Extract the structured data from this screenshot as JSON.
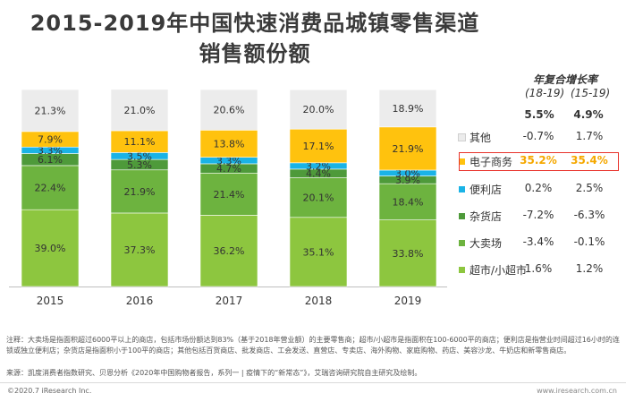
{
  "title_line1": "2015-2019年中国快速消费品城镇零售渠道",
  "title_line2": "销售额份额",
  "cagr_header": "年复合增长率",
  "cagr_period1": "(18-19)",
  "cagr_period2": "(15-19)",
  "chart_data": {
    "type": "bar",
    "stacked": true,
    "percent_stacked": true,
    "categories": [
      "2015",
      "2016",
      "2017",
      "2018",
      "2019"
    ],
    "series": [
      {
        "name": "超市/小超市",
        "color": "#8dc63f",
        "values": [
          39.0,
          37.3,
          36.2,
          35.1,
          33.8
        ],
        "labels": [
          "39.0%",
          "37.3%",
          "36.2%",
          "35.1%",
          "33.8%"
        ]
      },
      {
        "name": "大卖场",
        "color": "#6db33f",
        "values": [
          22.4,
          21.9,
          21.4,
          20.1,
          18.4
        ],
        "labels": [
          "22.4%",
          "21.9%",
          "21.4%",
          "20.1%",
          "18.4%"
        ]
      },
      {
        "name": "杂货店",
        "color": "#4e9a3a",
        "values": [
          6.1,
          5.3,
          4.7,
          4.4,
          3.9
        ],
        "labels": [
          "6.1%",
          "5.3%",
          "4.7%",
          "4.4%",
          "3.9%"
        ]
      },
      {
        "name": "便利店",
        "color": "#1ab3e6",
        "values": [
          3.3,
          3.5,
          3.3,
          3.2,
          3.0
        ],
        "labels": [
          "3.3%",
          "3.5%",
          "3.3%",
          "3.2%",
          "3.0%"
        ]
      },
      {
        "name": "电子商务",
        "color": "#ffc20e",
        "values": [
          7.9,
          11.1,
          13.8,
          17.1,
          21.9
        ],
        "labels": [
          "7.9%",
          "11.1%",
          "13.8%",
          "17.1%",
          "21.9%"
        ]
      },
      {
        "name": "其他",
        "color": "#ececec",
        "values": [
          21.3,
          21.0,
          20.6,
          20.0,
          18.9
        ],
        "labels": [
          "21.3%",
          "21.0%",
          "20.6%",
          "20.0%",
          "18.9%"
        ]
      }
    ],
    "ylim": [
      0,
      100
    ]
  },
  "legend_rows": [
    {
      "name": "其他",
      "color": "#ececec",
      "cagr_18_19": "-0.7%",
      "cagr_15_19": "1.7%",
      "highlight": false
    },
    {
      "name": "电子商务",
      "color": "#ffc20e",
      "cagr_18_19": "35.2%",
      "cagr_15_19": "35.4%",
      "highlight": true
    },
    {
      "name": "便利店",
      "color": "#1ab3e6",
      "cagr_18_19": "0.2%",
      "cagr_15_19": "2.5%",
      "highlight": false
    },
    {
      "name": "杂货店",
      "color": "#4e9a3a",
      "cagr_18_19": "-7.2%",
      "cagr_15_19": "-6.3%",
      "highlight": false
    },
    {
      "name": "大卖场",
      "color": "#6db33f",
      "cagr_18_19": "-3.4%",
      "cagr_15_19": "-0.1%",
      "highlight": false
    },
    {
      "name": "超市/小超市",
      "color": "#8dc63f",
      "cagr_18_19": "1.6%",
      "cagr_15_19": "1.2%",
      "highlight": false
    }
  ],
  "total_row": {
    "cagr_18_19": "5.5%",
    "cagr_15_19": "4.9%"
  },
  "highlight_color": "#e8332b",
  "footnote": "注释：大卖场是指面积超过6000平以上的商店，包括市场份额达到83%（基于2018年营业额）的主要零售商；超市/小超市是指面积在100-6000平的商店；便利店是指营业时间超过16小时的连锁或独立便利店；杂货店是指面积小于100平的商店；其他包括百货商店、批发商店、工会发送、直营店、专卖店、海外购物、家庭购物、药店、美容沙龙、牛奶店和新零售商店。",
  "source": "来源：凯度消费者指数研究、贝恩分析《2020年中国购物者报告，系列一 | 疫情下的“新常态”》，艾瑞咨询研究院自主研究及绘制。",
  "copyright": "©2020.7 iResearch Inc.",
  "website": "www.iresearch.com.cn"
}
